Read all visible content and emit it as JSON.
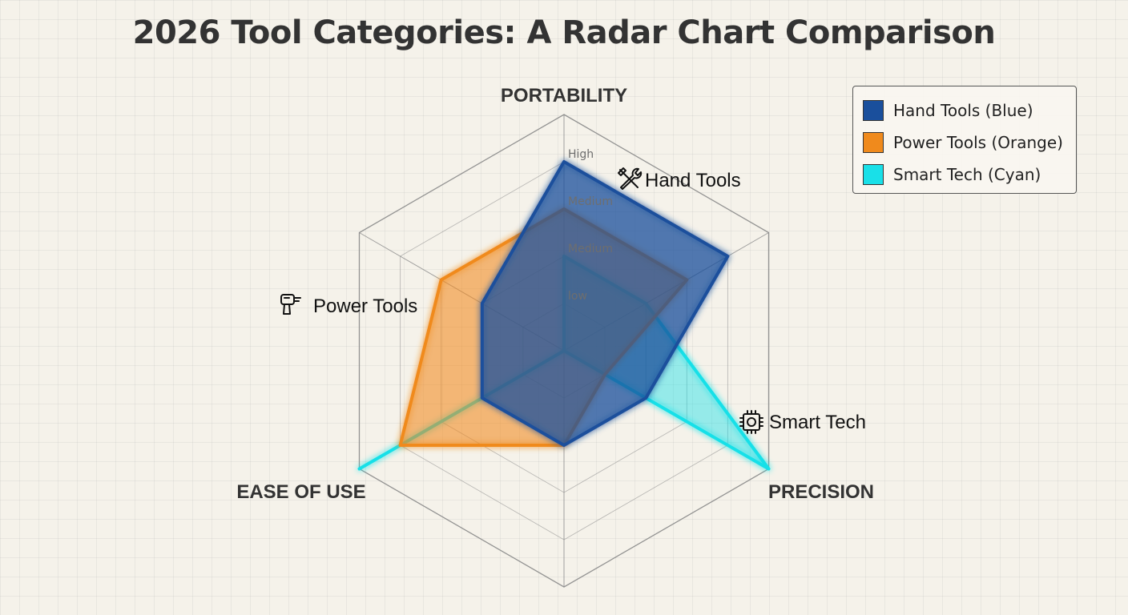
{
  "title": "2026 Tool Categories: A Radar Chart Comparison",
  "colors": {
    "hand": "#1a4f9c",
    "power": "#f08a1c",
    "smart": "#19e0e8",
    "grid": "#8a8a8a",
    "text": "#333333"
  },
  "legend": [
    {
      "label": "Hand Tools (Blue)",
      "color": "#1a4f9c"
    },
    {
      "label": "Power Tools (Orange)",
      "color": "#f08a1c"
    },
    {
      "label": "Smart Tech (Cyan)",
      "color": "#19e0e8"
    }
  ],
  "chart_data": {
    "type": "radar",
    "title": "2026 Tool Categories: A Radar Chart Comparison",
    "axes": [
      "PORTABILITY",
      "",
      "PRECISION",
      "",
      "EASE OF USE",
      ""
    ],
    "scale_labels": [
      "low",
      "Medium",
      "Medium",
      "High"
    ],
    "range": [
      0,
      5
    ],
    "grid": true,
    "legend_position": "top-right",
    "series": [
      {
        "name": "Hand Tools",
        "label": "Hand Tools",
        "icon": "wrench-screwdriver-icon",
        "color": "#1a4f9c",
        "values": [
          4,
          4,
          2,
          2,
          2,
          2
        ]
      },
      {
        "name": "Power Tools",
        "label": "Power Tools",
        "icon": "drill-icon",
        "color": "#f08a1c",
        "values": [
          3,
          3,
          1,
          2,
          4,
          3
        ]
      },
      {
        "name": "Smart Tech",
        "label": "Smart Tech",
        "icon": "chip-icon",
        "color": "#19e0e8",
        "values": [
          2,
          2,
          5,
          0,
          5,
          0
        ]
      }
    ]
  }
}
